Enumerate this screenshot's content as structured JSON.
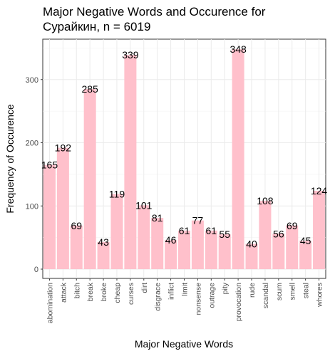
{
  "chart_data": {
    "type": "bar",
    "title": "Major Negative Words and Occurence for\nСурайкин, n = 6019",
    "xlabel": "Major Negative Words",
    "ylabel": "Frequency of Occurence",
    "ylim": [
      0,
      360
    ],
    "yticks": [
      0,
      100,
      200,
      300
    ],
    "grid": true,
    "bar_color": "#ffc0cb",
    "categories": [
      "abomination",
      "attack",
      "bitch",
      "break",
      "broke",
      "cheap",
      "curses",
      "dirt",
      "disgrace",
      "inflict",
      "limit",
      "nonsense",
      "outrage",
      "pity",
      "provocation",
      "rude",
      "scandal",
      "scum",
      "smell",
      "steal",
      "whores"
    ],
    "values": [
      165,
      192,
      69,
      285,
      43,
      119,
      339,
      101,
      81,
      46,
      61,
      77,
      61,
      55,
      348,
      40,
      108,
      56,
      69,
      45,
      124
    ]
  }
}
